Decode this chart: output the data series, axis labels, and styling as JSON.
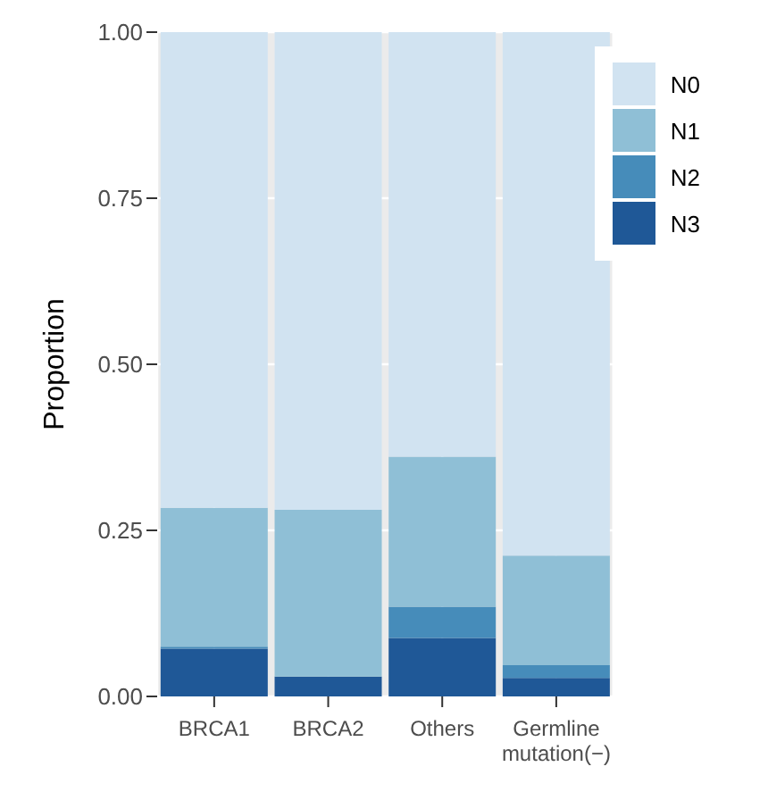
{
  "chart_data": {
    "type": "bar",
    "stacked": true,
    "ylabel": "Proportion",
    "categories": [
      "BRCA1",
      "BRCA2",
      "Others",
      "Germline\nmutation(−)"
    ],
    "series": [
      {
        "name": "N3",
        "color": "#1f5897",
        "values": [
          0.072,
          0.03,
          0.088,
          0.028
        ]
      },
      {
        "name": "N2",
        "color": "#468cba",
        "values": [
          0.003,
          0.0,
          0.047,
          0.019
        ]
      },
      {
        "name": "N1",
        "color": "#8fbfd6",
        "values": [
          0.209,
          0.251,
          0.226,
          0.165
        ]
      },
      {
        "name": "N0",
        "color": "#d1e3f1",
        "values": [
          0.716,
          0.719,
          0.639,
          0.788
        ]
      }
    ],
    "ylim": [
      0,
      1
    ],
    "yticks": [
      {
        "value": 0,
        "label": "0.00"
      },
      {
        "value": 0.25,
        "label": "0.25"
      },
      {
        "value": 0.5,
        "label": "0.50"
      },
      {
        "value": 0.75,
        "label": "0.75"
      },
      {
        "value": 1,
        "label": "1.00"
      }
    ],
    "grid": true,
    "legend": "top right"
  }
}
